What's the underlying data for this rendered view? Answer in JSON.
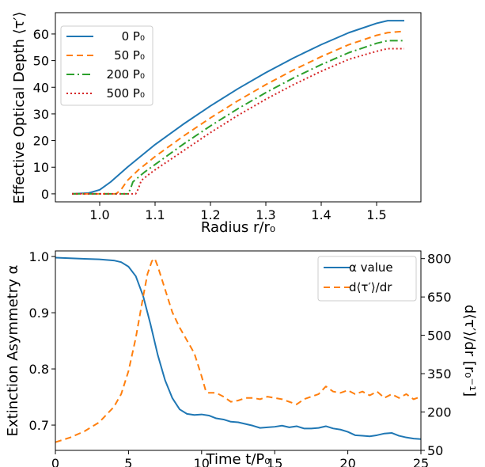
{
  "chart_data": [
    {
      "type": "line",
      "xlabel": "Radius r/r₀",
      "ylabel": "Effective Optical Depth ⟨τ′⟩",
      "xlim": [
        0.92,
        1.58
      ],
      "ylim": [
        -3,
        68
      ],
      "xticks": [
        1.0,
        1.1,
        1.2,
        1.3,
        1.4,
        1.5
      ],
      "xtick_labels": [
        "1.0",
        "1.1",
        "1.2",
        "1.3",
        "1.4",
        "1.5"
      ],
      "yticks": [
        0,
        10,
        20,
        30,
        40,
        50,
        60
      ],
      "ytick_labels": [
        "0",
        "10",
        "20",
        "30",
        "40",
        "50",
        "60"
      ],
      "grid": false,
      "legend": "top-left",
      "series": [
        {
          "name": "0 P₀",
          "color": "#1f77b4",
          "dash": "solid",
          "x": [
            0.95,
            0.98,
            1.0,
            1.02,
            1.05,
            1.1,
            1.15,
            1.2,
            1.25,
            1.3,
            1.35,
            1.4,
            1.45,
            1.5,
            1.52,
            1.55
          ],
          "y": [
            0,
            0.3,
            1.5,
            4.5,
            10,
            18.5,
            26,
            33,
            39.5,
            45.5,
            51,
            56,
            60.5,
            64,
            65,
            65
          ]
        },
        {
          "name": "50 P₀",
          "color": "#ff7f0e",
          "dash": "8,5",
          "x": [
            0.95,
            1.03,
            1.04,
            1.05,
            1.07,
            1.1,
            1.15,
            1.2,
            1.25,
            1.3,
            1.35,
            1.4,
            1.45,
            1.5,
            1.52,
            1.55
          ],
          "y": [
            0,
            0,
            2,
            5,
            9,
            14,
            21.5,
            28.5,
            35,
            41,
            46.5,
            51.5,
            56,
            59.5,
            60.5,
            61
          ]
        },
        {
          "name": "200 P₀",
          "color": "#2ca02c",
          "dash": "10,4,2,4",
          "x": [
            0.95,
            1.05,
            1.055,
            1.06,
            1.08,
            1.1,
            1.15,
            1.2,
            1.25,
            1.3,
            1.35,
            1.4,
            1.45,
            1.5,
            1.52,
            1.55
          ],
          "y": [
            0,
            0,
            1.5,
            4.5,
            8,
            11,
            18.5,
            25.5,
            32,
            38,
            43.5,
            48.5,
            53,
            56.5,
            57.5,
            57.5
          ]
        },
        {
          "name": "500 P₀",
          "color": "#d62728",
          "dash": "2,3",
          "x": [
            0.95,
            1.065,
            1.07,
            1.075,
            1.09,
            1.1,
            1.15,
            1.2,
            1.25,
            1.3,
            1.35,
            1.4,
            1.45,
            1.5,
            1.52,
            1.55
          ],
          "y": [
            0,
            0,
            2,
            5,
            7.5,
            9,
            16,
            23,
            29.5,
            35.5,
            41,
            46,
            50.5,
            53.5,
            54.5,
            54.5
          ]
        }
      ]
    },
    {
      "type": "line",
      "xlabel": "Time t/P₀",
      "ylabel": "Extinction Asymmetry α",
      "ylabel_right": "d⟨τ′⟩/dr [r₀⁻¹]",
      "xlim": [
        0,
        25
      ],
      "ylim": [
        0.655,
        1.01
      ],
      "ylim_right": [
        50,
        830
      ],
      "xticks": [
        0,
        5,
        10,
        15,
        20,
        25
      ],
      "xtick_labels": [
        "0",
        "5",
        "10",
        "15",
        "20",
        "25"
      ],
      "yticks": [
        0.7,
        0.8,
        0.9,
        1.0
      ],
      "ytick_labels": [
        "0.7",
        "0.8",
        "0.9",
        "1.0"
      ],
      "yticks_right": [
        50,
        200,
        350,
        500,
        650,
        800
      ],
      "ytick_labels_right": [
        "50",
        "200",
        "350",
        "500",
        "650",
        "800"
      ],
      "grid": false,
      "legend": "top-right",
      "series": [
        {
          "name": "α value",
          "axis": "left",
          "color": "#1f77b4",
          "dash": "solid",
          "x": [
            0,
            1,
            2,
            3,
            4,
            4.5,
            5,
            5.5,
            6,
            6.5,
            7,
            7.5,
            8,
            8.5,
            9,
            9.5,
            10,
            10.5,
            11,
            11.5,
            12,
            12.5,
            13,
            13.5,
            14,
            14.5,
            15,
            15.5,
            16,
            16.5,
            17,
            17.5,
            18,
            18.5,
            19,
            19.5,
            20,
            20.5,
            21,
            21.5,
            22,
            22.5,
            23,
            23.5,
            24,
            24.5,
            25
          ],
          "y": [
            0.998,
            0.997,
            0.996,
            0.995,
            0.993,
            0.99,
            0.982,
            0.965,
            0.93,
            0.88,
            0.825,
            0.78,
            0.748,
            0.728,
            0.72,
            0.718,
            0.719,
            0.717,
            0.712,
            0.71,
            0.706,
            0.705,
            0.702,
            0.699,
            0.695,
            0.696,
            0.697,
            0.699,
            0.696,
            0.698,
            0.694,
            0.694,
            0.695,
            0.698,
            0.694,
            0.692,
            0.688,
            0.682,
            0.681,
            0.68,
            0.682,
            0.685,
            0.686,
            0.681,
            0.678,
            0.676,
            0.675
          ]
        },
        {
          "name": "d⟨τ′⟩/dr",
          "axis": "right",
          "color": "#ff7f0e",
          "dash": "8,5",
          "x": [
            0,
            1,
            2,
            3,
            4,
            4.5,
            5,
            5.5,
            6,
            6.3,
            6.6,
            6.8,
            7,
            7.5,
            8,
            8.5,
            9,
            9.5,
            10,
            10.3,
            10.5,
            11,
            11.5,
            12,
            12.5,
            13,
            13.5,
            14,
            14.5,
            15,
            15.5,
            16,
            16.5,
            17,
            17.5,
            18,
            18.5,
            19,
            19.5,
            20,
            20.5,
            21,
            21.5,
            22,
            22.5,
            23,
            23.5,
            24,
            24.5,
            25
          ],
          "y": [
            82,
            100,
            125,
            160,
            220,
            270,
            360,
            490,
            650,
            740,
            790,
            800,
            770,
            680,
            590,
            530,
            480,
            430,
            340,
            280,
            275,
            275,
            260,
            240,
            245,
            255,
            255,
            250,
            260,
            255,
            250,
            240,
            230,
            250,
            260,
            270,
            300,
            280,
            275,
            285,
            270,
            280,
            265,
            280,
            255,
            270,
            255,
            270,
            250,
            260
          ]
        }
      ]
    }
  ]
}
